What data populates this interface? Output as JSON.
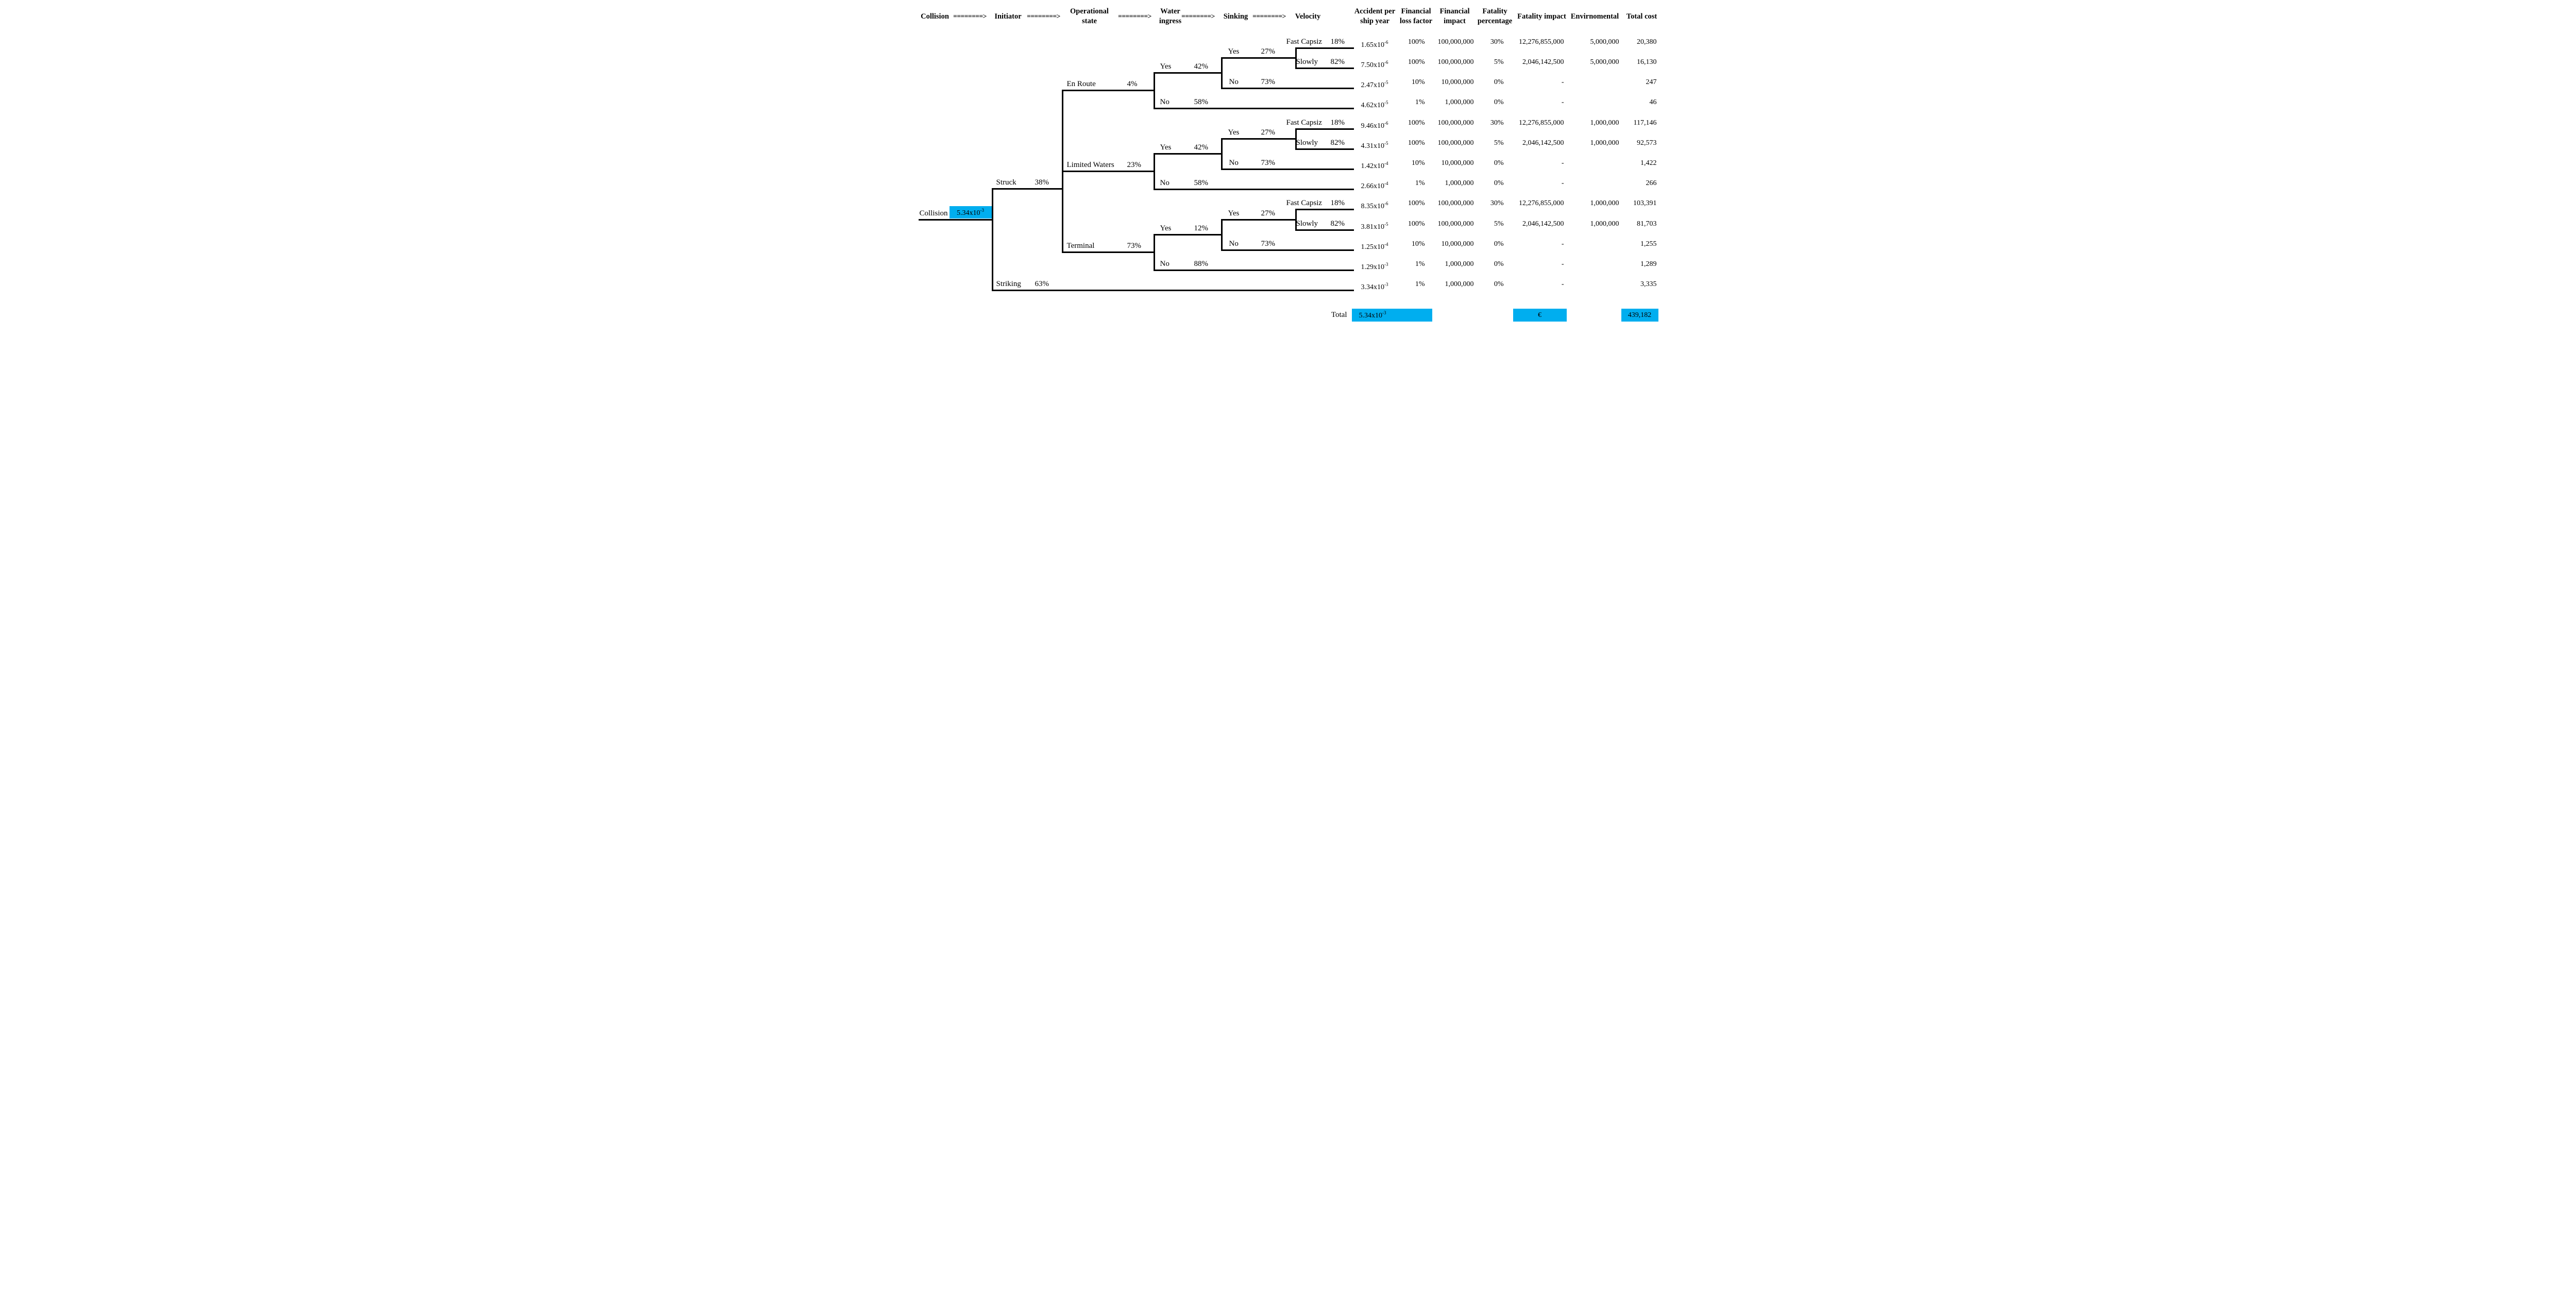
{
  "colors": {
    "highlight": "#00AEEF",
    "line": "#000000"
  },
  "header": {
    "arrow": "========>",
    "columns": [
      {
        "id": "collision",
        "lines": [
          "Collision"
        ]
      },
      {
        "id": "initiator",
        "lines": [
          "Initiator"
        ]
      },
      {
        "id": "operational-state",
        "lines": [
          "Operational",
          "state"
        ]
      },
      {
        "id": "water-ingress",
        "lines": [
          "Water",
          "ingress"
        ]
      },
      {
        "id": "sinking",
        "lines": [
          "Sinking"
        ]
      },
      {
        "id": "velocity",
        "lines": [
          "Velocity"
        ]
      },
      {
        "id": "accident-per-ship-year",
        "lines": [
          "Accident per",
          "ship year"
        ]
      },
      {
        "id": "financial-loss-factor",
        "lines": [
          "Financial",
          "loss factor"
        ]
      },
      {
        "id": "financial-impact",
        "lines": [
          "Financial",
          "impact"
        ]
      },
      {
        "id": "fatality-percentage",
        "lines": [
          "Fatality",
          "percentage"
        ]
      },
      {
        "id": "fatality-impact",
        "lines": [
          "Fatality impact"
        ]
      },
      {
        "id": "envirnomental",
        "lines": [
          "Envirnomental"
        ]
      },
      {
        "id": "total-cost",
        "lines": [
          "Total cost"
        ]
      }
    ]
  },
  "tree": {
    "root": {
      "label": "Collision",
      "freq_m": "5.34x10",
      "freq_e": "-3"
    },
    "initiator": [
      {
        "label": "Struck",
        "pct": "38%"
      },
      {
        "label": "Striking",
        "pct": "63%"
      }
    ],
    "operational_state": [
      {
        "label": "En Route",
        "pct": "4%",
        "water_ingress_yes": "42%",
        "water_ingress_no": "58%"
      },
      {
        "label": "Limited Waters",
        "pct": "23%",
        "water_ingress_yes": "42%",
        "water_ingress_no": "58%"
      },
      {
        "label": "Terminal",
        "pct": "73%",
        "water_ingress_yes": "12%",
        "water_ingress_no": "88%"
      }
    ],
    "water_ingress_labels": {
      "yes": "Yes",
      "no": "No"
    },
    "sinking": {
      "yes_label": "Yes",
      "yes_pct": "27%",
      "no_label": "No",
      "no_pct": "73%"
    },
    "velocity": [
      {
        "label": "Fast Capsiz",
        "pct": "18%"
      },
      {
        "label": "Slowly",
        "pct": "82%"
      }
    ]
  },
  "rows": [
    {
      "accident_m": "1.65x10",
      "accident_e": "-6",
      "loss_factor": "100%",
      "financial_impact": "100,000,000",
      "fatality_pct": "30%",
      "fatality_impact": "12,276,855,000",
      "environmental": "5,000,000",
      "total_cost": "20,380"
    },
    {
      "accident_m": "7.50x10",
      "accident_e": "-6",
      "loss_factor": "100%",
      "financial_impact": "100,000,000",
      "fatality_pct": "5%",
      "fatality_impact": "2,046,142,500",
      "environmental": "5,000,000",
      "total_cost": "16,130"
    },
    {
      "accident_m": "2.47x10",
      "accident_e": "-5",
      "loss_factor": "10%",
      "financial_impact": "10,000,000",
      "fatality_pct": "0%",
      "fatality_impact": "-",
      "environmental": "",
      "total_cost": "247"
    },
    {
      "accident_m": "4.62x10",
      "accident_e": "-5",
      "loss_factor": "1%",
      "financial_impact": "1,000,000",
      "fatality_pct": "0%",
      "fatality_impact": "-",
      "environmental": "",
      "total_cost": "46"
    },
    {
      "accident_m": "9.46x10",
      "accident_e": "-6",
      "loss_factor": "100%",
      "financial_impact": "100,000,000",
      "fatality_pct": "30%",
      "fatality_impact": "12,276,855,000",
      "environmental": "1,000,000",
      "total_cost": "117,146"
    },
    {
      "accident_m": "4.31x10",
      "accident_e": "-5",
      "loss_factor": "100%",
      "financial_impact": "100,000,000",
      "fatality_pct": "5%",
      "fatality_impact": "2,046,142,500",
      "environmental": "1,000,000",
      "total_cost": "92,573"
    },
    {
      "accident_m": "1.42x10",
      "accident_e": "-4",
      "loss_factor": "10%",
      "financial_impact": "10,000,000",
      "fatality_pct": "0%",
      "fatality_impact": "-",
      "environmental": "",
      "total_cost": "1,422"
    },
    {
      "accident_m": "2.66x10",
      "accident_e": "-4",
      "loss_factor": "1%",
      "financial_impact": "1,000,000",
      "fatality_pct": "0%",
      "fatality_impact": "-",
      "environmental": "",
      "total_cost": "266"
    },
    {
      "accident_m": "8.35x10",
      "accident_e": "-6",
      "loss_factor": "100%",
      "financial_impact": "100,000,000",
      "fatality_pct": "30%",
      "fatality_impact": "12,276,855,000",
      "environmental": "1,000,000",
      "total_cost": "103,391"
    },
    {
      "accident_m": "3.81x10",
      "accident_e": "-5",
      "loss_factor": "100%",
      "financial_impact": "100,000,000",
      "fatality_pct": "5%",
      "fatality_impact": "2,046,142,500",
      "environmental": "1,000,000",
      "total_cost": "81,703"
    },
    {
      "accident_m": "1.25x10",
      "accident_e": "-4",
      "loss_factor": "10%",
      "financial_impact": "10,000,000",
      "fatality_pct": "0%",
      "fatality_impact": "-",
      "environmental": "",
      "total_cost": "1,255"
    },
    {
      "accident_m": "1.29x10",
      "accident_e": "-3",
      "loss_factor": "1%",
      "financial_impact": "1,000,000",
      "fatality_pct": "0%",
      "fatality_impact": "-",
      "environmental": "",
      "total_cost": "1,289"
    },
    {
      "accident_m": "3.34x10",
      "accident_e": "-3",
      "loss_factor": "1%",
      "financial_impact": "1,000,000",
      "fatality_pct": "0%",
      "fatality_impact": "-",
      "environmental": "",
      "total_cost": "3,335"
    }
  ],
  "total": {
    "label": "Total",
    "accident_m": "5.34x10",
    "accident_e": "-3",
    "fatality_impact": "€",
    "total_cost": "439,182"
  }
}
